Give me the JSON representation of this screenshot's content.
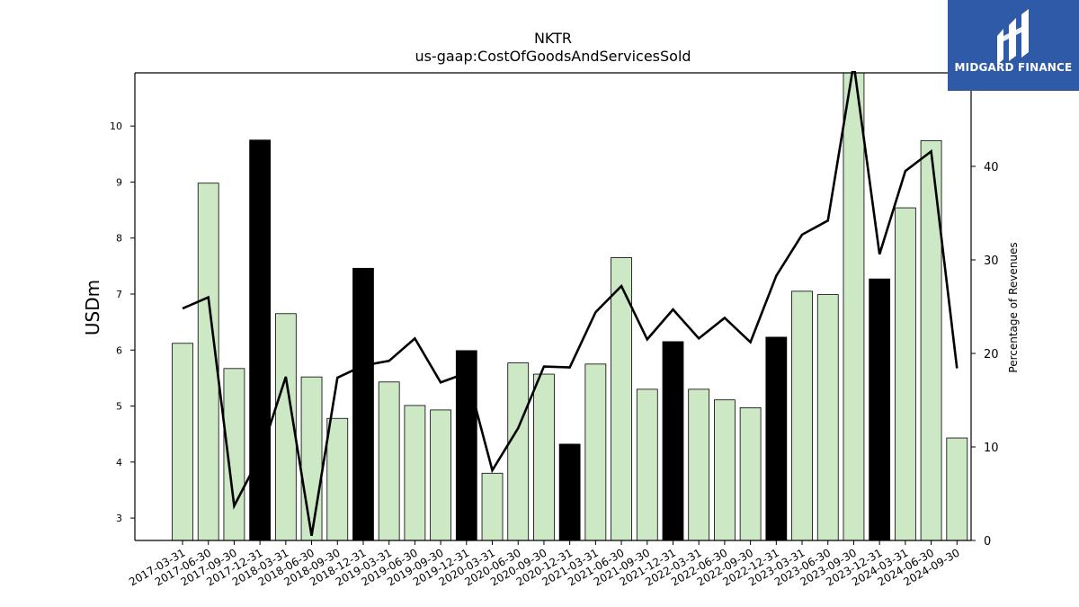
{
  "brand": {
    "name": "MIDGARD FINANCE",
    "color": "#2e5aa8"
  },
  "chart_data": {
    "type": "bar",
    "title": "NKTR",
    "subtitle": "us-gaap:CostOfGoodsAndServicesSold",
    "ylabel": "USDm",
    "y2label": "Percentage of Revenues",
    "ylim": [
      2.6,
      10.95
    ],
    "y2lim": [
      0,
      50
    ],
    "yticks": [
      3,
      4,
      5,
      6,
      7,
      8,
      9,
      10
    ],
    "y2ticks": [
      0,
      10,
      20,
      30,
      40
    ],
    "categories": [
      "2017-03-31",
      "2017-06-30",
      "2017-09-30",
      "2017-12-31",
      "2018-03-31",
      "2018-06-30",
      "2018-09-30",
      "2018-12-31",
      "2019-03-31",
      "2019-06-30",
      "2019-09-30",
      "2019-12-31",
      "2020-03-31",
      "2020-06-30",
      "2020-09-30",
      "2020-12-31",
      "2021-03-31",
      "2021-06-30",
      "2021-09-30",
      "2021-12-31",
      "2022-03-31",
      "2022-06-30",
      "2022-09-30",
      "2022-12-31",
      "2023-03-31",
      "2023-06-30",
      "2023-09-30",
      "2023-12-31",
      "2024-03-31",
      "2024-06-30",
      "2024-09-30"
    ],
    "series": [
      {
        "axis": "left",
        "kind": "bar",
        "values": [
          6.12,
          8.98,
          5.67,
          9.75,
          6.65,
          5.52,
          4.78,
          7.46,
          5.43,
          5.01,
          4.93,
          5.99,
          3.8,
          5.77,
          5.57,
          4.32,
          5.75,
          7.65,
          5.3,
          6.15,
          5.3,
          5.11,
          4.97,
          6.23,
          7.05,
          6.99,
          10.95,
          7.27,
          8.54,
          9.74,
          4.43
        ],
        "colors": {
          "quarter": "#cce8c4",
          "year_end": "#000000"
        }
      },
      {
        "axis": "right",
        "kind": "line",
        "color": "#000000",
        "values": [
          24.8,
          26,
          3.7,
          9,
          17.5,
          0.5,
          17.4,
          18.7,
          19.2,
          21.6,
          16.9,
          17.9,
          7.5,
          12,
          18.6,
          18.5,
          24.4,
          27.2,
          21.5,
          24.7,
          21.6,
          23.8,
          21.2,
          28.3,
          32.7,
          34.2,
          51,
          30.6,
          39.5,
          41.6,
          18.4
        ]
      }
    ],
    "grid": false,
    "legend": "none"
  }
}
